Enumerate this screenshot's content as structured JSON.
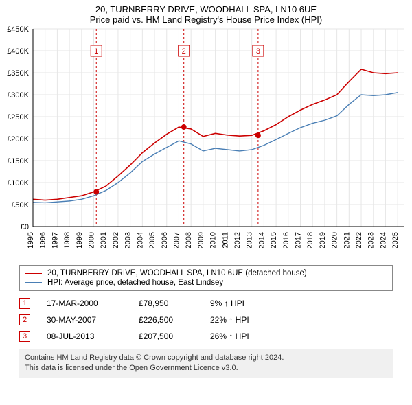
{
  "header": {
    "title_line1": "20, TURNBERRY DRIVE, WOODHALL SPA, LN10 6UE",
    "title_line2": "Price paid vs. HM Land Registry's House Price Index (HPI)"
  },
  "chart": {
    "type": "line",
    "background_color": "#ffffff",
    "grid_color": "#e6e6e6",
    "axis_color": "#000000",
    "label_fontsize": 11,
    "ylim": [
      0,
      450000
    ],
    "ytick_step": 50000,
    "yticks_labels": [
      "£0",
      "£50K",
      "£100K",
      "£150K",
      "£200K",
      "£250K",
      "£300K",
      "£350K",
      "£400K",
      "£450K"
    ],
    "x_years": [
      1995,
      1996,
      1997,
      1998,
      1999,
      2000,
      2001,
      2002,
      2003,
      2004,
      2005,
      2006,
      2007,
      2008,
      2009,
      2010,
      2011,
      2012,
      2013,
      2014,
      2015,
      2016,
      2017,
      2018,
      2019,
      2020,
      2021,
      2022,
      2023,
      2024,
      2025
    ],
    "x_min": 1995,
    "x_max": 2025.5,
    "series": [
      {
        "key": "subject",
        "color": "#cc0000",
        "line_width": 1.6,
        "data": [
          [
            1995,
            62000
          ],
          [
            1996,
            60000
          ],
          [
            1997,
            62000
          ],
          [
            1998,
            66000
          ],
          [
            1999,
            70000
          ],
          [
            2000,
            78950
          ],
          [
            2001,
            92000
          ],
          [
            2002,
            115000
          ],
          [
            2003,
            140000
          ],
          [
            2004,
            168000
          ],
          [
            2005,
            190000
          ],
          [
            2006,
            210000
          ],
          [
            2007,
            226500
          ],
          [
            2008,
            222000
          ],
          [
            2009,
            205000
          ],
          [
            2010,
            212000
          ],
          [
            2011,
            208000
          ],
          [
            2012,
            206000
          ],
          [
            2013,
            207500
          ],
          [
            2014,
            218000
          ],
          [
            2015,
            232000
          ],
          [
            2016,
            250000
          ],
          [
            2017,
            265000
          ],
          [
            2018,
            278000
          ],
          [
            2019,
            288000
          ],
          [
            2020,
            300000
          ],
          [
            2021,
            330000
          ],
          [
            2022,
            358000
          ],
          [
            2023,
            350000
          ],
          [
            2024,
            348000
          ],
          [
            2025,
            350000
          ]
        ]
      },
      {
        "key": "hpi",
        "color": "#4a7fb5",
        "line_width": 1.4,
        "data": [
          [
            1995,
            55000
          ],
          [
            1996,
            54000
          ],
          [
            1997,
            56000
          ],
          [
            1998,
            58000
          ],
          [
            1999,
            62000
          ],
          [
            2000,
            70000
          ],
          [
            2001,
            82000
          ],
          [
            2002,
            100000
          ],
          [
            2003,
            122000
          ],
          [
            2004,
            148000
          ],
          [
            2005,
            165000
          ],
          [
            2006,
            180000
          ],
          [
            2007,
            195000
          ],
          [
            2008,
            188000
          ],
          [
            2009,
            172000
          ],
          [
            2010,
            178000
          ],
          [
            2011,
            175000
          ],
          [
            2012,
            172000
          ],
          [
            2013,
            175000
          ],
          [
            2014,
            185000
          ],
          [
            2015,
            198000
          ],
          [
            2016,
            212000
          ],
          [
            2017,
            225000
          ],
          [
            2018,
            235000
          ],
          [
            2019,
            242000
          ],
          [
            2020,
            252000
          ],
          [
            2021,
            278000
          ],
          [
            2022,
            300000
          ],
          [
            2023,
            298000
          ],
          [
            2024,
            300000
          ],
          [
            2025,
            305000
          ]
        ]
      }
    ],
    "sale_markers": [
      {
        "num": "1",
        "year": 2000.21,
        "price": 78950
      },
      {
        "num": "2",
        "year": 2007.41,
        "price": 226500
      },
      {
        "num": "3",
        "year": 2013.52,
        "price": 207500
      }
    ],
    "marker_color": "#cc0000",
    "marker_dash": "3,3",
    "marker_dot_radius": 4
  },
  "legend": {
    "items": [
      {
        "color": "#cc0000",
        "label": "20, TURNBERRY DRIVE, WOODHALL SPA, LN10 6UE (detached house)"
      },
      {
        "color": "#4a7fb5",
        "label": "HPI: Average price, detached house, East Lindsey"
      }
    ]
  },
  "sales": [
    {
      "num": "1",
      "date": "17-MAR-2000",
      "price": "£78,950",
      "pct": "9% ↑ HPI"
    },
    {
      "num": "2",
      "date": "30-MAY-2007",
      "price": "£226,500",
      "pct": "22% ↑ HPI"
    },
    {
      "num": "3",
      "date": "08-JUL-2013",
      "price": "£207,500",
      "pct": "26% ↑ HPI"
    }
  ],
  "footer": {
    "line1": "Contains HM Land Registry data © Crown copyright and database right 2024.",
    "line2": "This data is licensed under the Open Government Licence v3.0."
  }
}
